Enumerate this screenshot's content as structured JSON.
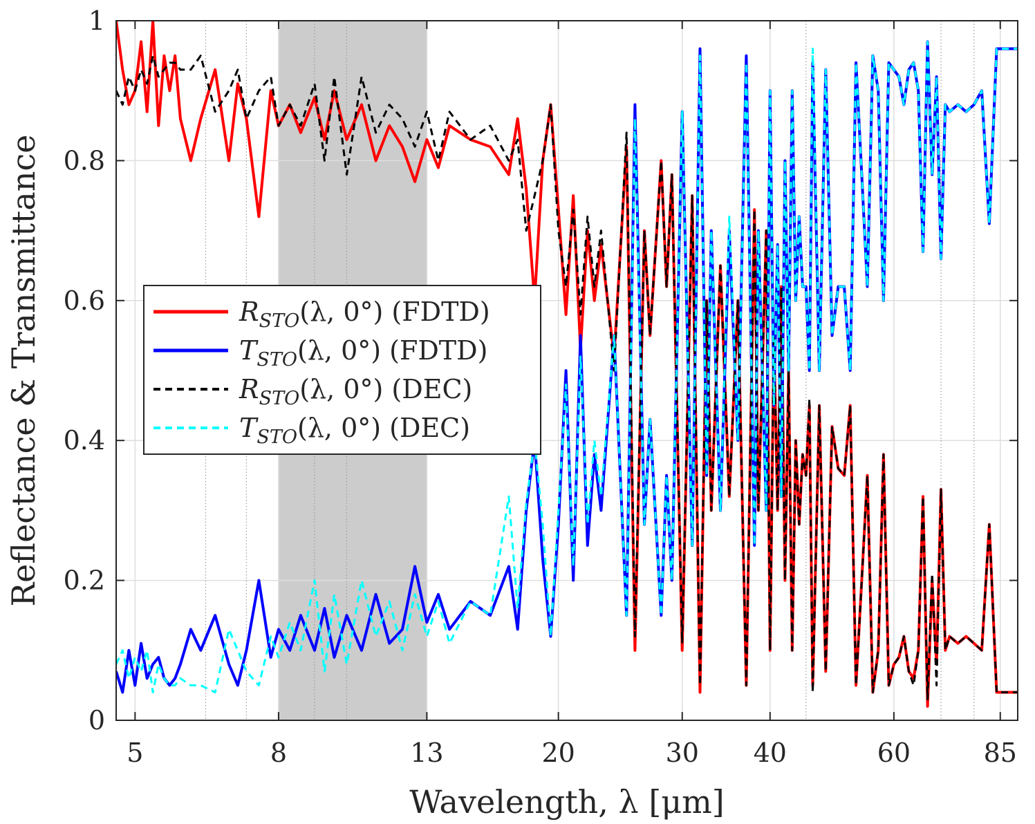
{
  "chart_data": {
    "type": "line",
    "xlabel": "Wavelength, λ [μm]",
    "ylabel": "Reflectance & Transmittance",
    "x_scale": "log",
    "xlim": [
      4.7,
      90
    ],
    "ylim": [
      0,
      1
    ],
    "xticks": [
      5,
      8,
      13,
      20,
      30,
      40,
      60,
      85
    ],
    "xtick_labels": [
      "5",
      "8",
      "13",
      "20",
      "30",
      "40",
      "60",
      "85"
    ],
    "yticks": [
      0,
      0.2,
      0.4,
      0.6,
      0.8,
      1
    ],
    "ytick_labels": [
      "0",
      "0.2",
      "0.4",
      "0.6",
      "0.8",
      "1"
    ],
    "minor_x_gridlines": [
      6.3,
      7.2,
      9,
      10,
      45,
      70,
      78
    ],
    "shaded_band": [
      8,
      13
    ],
    "grid": true,
    "legend_position": "left-middle",
    "series": [
      {
        "name": "R_STO(λ,0°) (FDTD)",
        "color": "#ff0000",
        "style": "solid",
        "x": [
          4.7,
          4.8,
          4.9,
          5.0,
          5.1,
          5.2,
          5.3,
          5.4,
          5.5,
          5.6,
          5.7,
          5.8,
          6.0,
          6.2,
          6.5,
          6.8,
          7.0,
          7.2,
          7.5,
          7.8,
          8.0,
          8.3,
          8.6,
          9.0,
          9.3,
          9.6,
          10.0,
          10.5,
          11.0,
          11.5,
          12.0,
          12.5,
          13.0,
          13.5,
          14.0,
          15.0,
          16.0,
          17.0,
          17.5,
          18.0,
          18.5,
          19.0,
          19.5,
          20.0,
          20.5,
          21.0,
          21.5,
          22.0,
          22.5,
          23.0,
          24.0,
          25.0,
          25.7,
          26.5,
          27.0,
          28.0,
          28.5,
          29.0,
          30.0,
          31.0,
          31.8,
          32.5,
          33.0,
          34.0,
          35.0,
          36.0,
          37.0,
          38.0,
          38.5,
          39.5,
          40.0,
          40.5,
          41.0,
          41.5,
          42.0,
          42.5,
          43.0,
          43.5,
          44.0,
          44.5,
          45.0,
          45.5,
          46.0,
          47.0,
          48.0,
          49.0,
          50.0,
          51.0,
          52.0,
          53.0,
          54.0,
          55.0,
          56.0,
          57.0,
          58.0,
          59.0,
          60.0,
          61.0,
          62.0,
          63.0,
          64.0,
          65.0,
          66.0,
          67.0,
          68.0,
          69.0,
          70.0,
          71.0,
          72.0,
          74.0,
          76.0,
          78.0,
          80.0,
          82.0,
          84.0,
          85.0,
          86.0,
          88.0,
          90.0
        ],
        "y": [
          1.0,
          0.93,
          0.88,
          0.9,
          0.97,
          0.87,
          1.0,
          0.85,
          0.95,
          0.9,
          0.95,
          0.86,
          0.8,
          0.86,
          0.93,
          0.8,
          0.91,
          0.86,
          0.72,
          0.9,
          0.85,
          0.88,
          0.84,
          0.89,
          0.83,
          0.9,
          0.83,
          0.88,
          0.8,
          0.85,
          0.82,
          0.77,
          0.83,
          0.79,
          0.85,
          0.83,
          0.82,
          0.78,
          0.86,
          0.76,
          0.6,
          0.8,
          0.88,
          0.73,
          0.58,
          0.75,
          0.53,
          0.7,
          0.6,
          0.68,
          0.52,
          0.82,
          0.1,
          0.7,
          0.55,
          0.8,
          0.62,
          0.78,
          0.1,
          0.75,
          0.04,
          0.6,
          0.3,
          0.65,
          0.32,
          0.6,
          0.05,
          0.73,
          0.3,
          0.7,
          0.1,
          0.55,
          0.3,
          0.62,
          0.2,
          0.5,
          0.1,
          0.4,
          0.28,
          0.38,
          0.35,
          0.45,
          0.05,
          0.45,
          0.07,
          0.42,
          0.36,
          0.35,
          0.45,
          0.05,
          0.2,
          0.35,
          0.04,
          0.1,
          0.38,
          0.05,
          0.08,
          0.09,
          0.12,
          0.07,
          0.06,
          0.1,
          0.32,
          0.02,
          0.2,
          0.08,
          0.33,
          0.1,
          0.12,
          0.11,
          0.12,
          0.11,
          0.1,
          0.28,
          0.04,
          0.04,
          0.04,
          0.04,
          0.04
        ],
        "line_width": 4
      },
      {
        "name": "T_STO(λ,0°) (FDTD)",
        "color": "#0000ff",
        "style": "solid",
        "x": [
          4.7,
          4.8,
          4.9,
          5.0,
          5.1,
          5.2,
          5.3,
          5.4,
          5.5,
          5.6,
          5.7,
          5.8,
          6.0,
          6.2,
          6.5,
          6.8,
          7.0,
          7.2,
          7.5,
          7.8,
          8.0,
          8.3,
          8.6,
          9.0,
          9.3,
          9.6,
          10.0,
          10.5,
          11.0,
          11.5,
          12.0,
          12.5,
          13.0,
          13.5,
          14.0,
          15.0,
          16.0,
          17.0,
          17.5,
          18.0,
          18.5,
          19.0,
          19.5,
          20.0,
          20.5,
          21.0,
          21.5,
          22.0,
          22.5,
          23.0,
          24.0,
          25.0,
          25.7,
          26.5,
          27.0,
          28.0,
          28.5,
          29.0,
          30.0,
          31.0,
          31.8,
          32.5,
          33.0,
          34.0,
          35.0,
          36.0,
          37.0,
          38.0,
          38.5,
          39.5,
          40.0,
          40.5,
          41.0,
          41.5,
          42.0,
          42.5,
          43.0,
          43.5,
          44.0,
          44.5,
          45.0,
          45.5,
          46.0,
          47.0,
          48.0,
          49.0,
          50.0,
          51.0,
          52.0,
          53.0,
          54.0,
          55.0,
          56.0,
          57.0,
          58.0,
          59.0,
          60.0,
          61.0,
          62.0,
          63.0,
          64.0,
          65.0,
          66.0,
          67.0,
          68.0,
          69.0,
          70.0,
          71.0,
          72.0,
          74.0,
          76.0,
          78.0,
          80.0,
          82.0,
          84.0,
          85.0,
          86.0,
          88.0,
          90.0
        ],
        "y": [
          0.07,
          0.04,
          0.1,
          0.05,
          0.11,
          0.06,
          0.08,
          0.09,
          0.06,
          0.05,
          0.06,
          0.08,
          0.13,
          0.1,
          0.15,
          0.08,
          0.05,
          0.1,
          0.2,
          0.09,
          0.13,
          0.1,
          0.15,
          0.1,
          0.16,
          0.09,
          0.15,
          0.1,
          0.18,
          0.11,
          0.13,
          0.22,
          0.14,
          0.18,
          0.13,
          0.17,
          0.15,
          0.22,
          0.13,
          0.3,
          0.4,
          0.23,
          0.12,
          0.28,
          0.5,
          0.2,
          0.55,
          0.25,
          0.38,
          0.3,
          0.55,
          0.15,
          0.88,
          0.28,
          0.43,
          0.15,
          0.35,
          0.2,
          0.87,
          0.25,
          0.96,
          0.35,
          0.7,
          0.3,
          0.7,
          0.4,
          0.95,
          0.25,
          0.7,
          0.3,
          0.9,
          0.45,
          0.68,
          0.32,
          0.8,
          0.5,
          0.9,
          0.6,
          0.72,
          0.62,
          0.62,
          0.5,
          0.94,
          0.5,
          0.93,
          0.55,
          0.62,
          0.62,
          0.5,
          0.94,
          0.78,
          0.62,
          0.95,
          0.9,
          0.6,
          0.94,
          0.93,
          0.92,
          0.88,
          0.93,
          0.94,
          0.9,
          0.67,
          0.97,
          0.78,
          0.92,
          0.66,
          0.88,
          0.87,
          0.88,
          0.87,
          0.88,
          0.9,
          0.71,
          0.96,
          0.96,
          0.96,
          0.96,
          0.96
        ],
        "line_width": 4
      },
      {
        "name": "R_STO(λ,0°) (DEC)",
        "color": "#000000",
        "style": "dashed",
        "x": [
          4.7,
          4.8,
          4.9,
          5.0,
          5.1,
          5.2,
          5.3,
          5.4,
          5.5,
          5.6,
          5.7,
          5.8,
          6.0,
          6.2,
          6.5,
          6.8,
          7.0,
          7.2,
          7.5,
          7.8,
          8.0,
          8.3,
          8.6,
          9.0,
          9.3,
          9.6,
          10.0,
          10.5,
          11.0,
          11.5,
          12.0,
          12.5,
          13.0,
          13.5,
          14.0,
          15.0,
          16.0,
          17.0,
          17.5,
          18.0,
          18.5,
          19.0,
          19.5,
          20.0,
          20.5,
          21.0,
          21.5,
          22.0,
          22.5,
          23.0,
          24.0,
          25.0,
          25.7,
          26.5,
          27.0,
          28.0,
          28.5,
          29.0,
          30.0,
          31.0,
          31.8,
          32.5,
          33.0,
          34.0,
          35.0,
          36.0,
          37.0,
          38.0,
          38.5,
          39.5,
          40.0,
          40.5,
          41.0,
          41.5,
          42.0,
          42.5,
          43.0,
          43.5,
          44.0,
          44.5,
          45.0,
          45.5,
          46.0,
          47.0,
          48.0,
          49.0,
          50.0,
          51.0,
          52.0,
          53.0,
          54.0,
          55.0,
          56.0,
          57.0,
          58.0,
          59.0,
          60.0,
          61.0,
          62.0,
          63.0,
          64.0,
          65.0,
          66.0,
          67.0,
          68.0,
          69.0,
          70.0,
          71.0,
          72.0,
          74.0,
          76.0,
          78.0,
          80.0,
          82.0,
          84.0,
          85.0,
          86.0,
          88.0,
          90.0
        ],
        "y": [
          0.9,
          0.88,
          0.92,
          0.9,
          0.93,
          0.91,
          0.95,
          0.92,
          0.93,
          0.94,
          0.94,
          0.93,
          0.93,
          0.95,
          0.87,
          0.9,
          0.93,
          0.86,
          0.9,
          0.92,
          0.85,
          0.88,
          0.85,
          0.91,
          0.8,
          0.92,
          0.78,
          0.92,
          0.84,
          0.88,
          0.86,
          0.82,
          0.87,
          0.8,
          0.87,
          0.83,
          0.85,
          0.8,
          0.83,
          0.7,
          0.75,
          0.8,
          0.88,
          0.7,
          0.62,
          0.73,
          0.58,
          0.72,
          0.62,
          0.7,
          0.5,
          0.84,
          0.12,
          0.7,
          0.55,
          0.8,
          0.62,
          0.78,
          0.11,
          0.75,
          0.05,
          0.6,
          0.3,
          0.65,
          0.32,
          0.6,
          0.05,
          0.73,
          0.3,
          0.7,
          0.1,
          0.55,
          0.3,
          0.62,
          0.2,
          0.5,
          0.1,
          0.4,
          0.28,
          0.38,
          0.35,
          0.46,
          0.04,
          0.45,
          0.07,
          0.42,
          0.36,
          0.35,
          0.45,
          0.05,
          0.2,
          0.35,
          0.04,
          0.1,
          0.38,
          0.05,
          0.08,
          0.09,
          0.12,
          0.07,
          0.05,
          0.1,
          0.32,
          0.03,
          0.21,
          0.05,
          0.33,
          0.1,
          0.12,
          0.11,
          0.12,
          0.11,
          0.1,
          0.28,
          0.04,
          0.04,
          0.04,
          0.04,
          0.04
        ],
        "line_width": 3
      },
      {
        "name": "T_STO(λ,0°) (DEC)",
        "color": "#00ffff",
        "style": "dashed",
        "x": [
          4.7,
          4.8,
          4.9,
          5.0,
          5.1,
          5.2,
          5.3,
          5.4,
          5.5,
          5.6,
          5.7,
          5.8,
          6.0,
          6.2,
          6.5,
          6.8,
          7.0,
          7.2,
          7.5,
          7.8,
          8.0,
          8.3,
          8.6,
          9.0,
          9.3,
          9.6,
          10.0,
          10.5,
          11.0,
          11.5,
          12.0,
          12.5,
          13.0,
          13.5,
          14.0,
          15.0,
          16.0,
          17.0,
          17.5,
          18.0,
          18.5,
          19.0,
          19.5,
          20.0,
          20.5,
          21.0,
          21.5,
          22.0,
          22.5,
          23.0,
          24.0,
          25.0,
          25.7,
          26.5,
          27.0,
          28.0,
          28.5,
          29.0,
          30.0,
          31.0,
          31.8,
          32.5,
          33.0,
          34.0,
          35.0,
          36.0,
          37.0,
          38.0,
          38.5,
          39.5,
          40.0,
          40.5,
          41.0,
          41.5,
          42.0,
          42.5,
          43.0,
          43.5,
          44.0,
          44.5,
          45.0,
          45.5,
          46.0,
          47.0,
          48.0,
          49.0,
          50.0,
          51.0,
          52.0,
          53.0,
          54.0,
          55.0,
          56.0,
          57.0,
          58.0,
          59.0,
          60.0,
          61.0,
          62.0,
          63.0,
          64.0,
          65.0,
          66.0,
          67.0,
          68.0,
          69.0,
          70.0,
          71.0,
          72.0,
          74.0,
          76.0,
          78.0,
          80.0,
          82.0,
          84.0,
          85.0,
          86.0,
          88.0,
          90.0
        ],
        "y": [
          0.08,
          0.1,
          0.06,
          0.09,
          0.07,
          0.1,
          0.04,
          0.08,
          0.06,
          0.05,
          0.05,
          0.06,
          0.05,
          0.05,
          0.04,
          0.13,
          0.1,
          0.07,
          0.05,
          0.12,
          0.09,
          0.14,
          0.1,
          0.2,
          0.07,
          0.18,
          0.08,
          0.2,
          0.12,
          0.17,
          0.1,
          0.18,
          0.12,
          0.17,
          0.11,
          0.17,
          0.15,
          0.32,
          0.16,
          0.31,
          0.4,
          0.28,
          0.12,
          0.3,
          0.48,
          0.22,
          0.52,
          0.28,
          0.4,
          0.32,
          0.55,
          0.15,
          0.86,
          0.28,
          0.43,
          0.15,
          0.35,
          0.2,
          0.87,
          0.25,
          0.95,
          0.35,
          0.7,
          0.3,
          0.72,
          0.4,
          0.94,
          0.25,
          0.7,
          0.3,
          0.9,
          0.45,
          0.68,
          0.32,
          0.8,
          0.5,
          0.9,
          0.6,
          0.72,
          0.62,
          0.62,
          0.5,
          0.96,
          0.5,
          0.93,
          0.55,
          0.62,
          0.62,
          0.5,
          0.94,
          0.78,
          0.62,
          0.95,
          0.9,
          0.6,
          0.94,
          0.93,
          0.92,
          0.88,
          0.93,
          0.94,
          0.9,
          0.67,
          0.97,
          0.78,
          0.92,
          0.66,
          0.88,
          0.87,
          0.88,
          0.87,
          0.88,
          0.9,
          0.71,
          0.96,
          0.96,
          0.96,
          0.96,
          0.96
        ],
        "line_width": 3
      }
    ]
  },
  "legend": {
    "entries": [
      {
        "symbol": "R",
        "sub": "STO",
        "args": "(λ, 0°)",
        "method": "(FDTD)"
      },
      {
        "symbol": "T",
        "sub": "STO",
        "args": "(λ, 0°)",
        "method": "(FDTD)"
      },
      {
        "symbol": "R",
        "sub": "STO",
        "args": "(λ, 0°)",
        "method": "(DEC)"
      },
      {
        "symbol": "T",
        "sub": "STO",
        "args": "(λ, 0°)",
        "method": "(DEC)"
      }
    ]
  }
}
